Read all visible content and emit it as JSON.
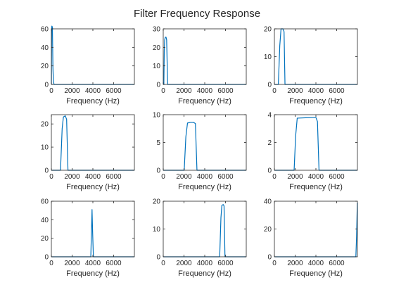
{
  "figure": {
    "title": "Filter Frequency Response",
    "line_color": "#0072BD"
  },
  "chart_data": [
    {
      "type": "line",
      "title": "",
      "xlabel": "Frequency (Hz)",
      "ylabel": "",
      "xlim": [
        0,
        8000
      ],
      "ylim": [
        0,
        60
      ],
      "xticks": [
        0,
        2000,
        4000,
        6000
      ],
      "yticks": [
        0,
        20,
        40,
        60
      ],
      "grid": false,
      "series": [
        {
          "x": [
            0,
            25,
            50,
            100,
            150,
            200,
            250,
            300,
            8000
          ],
          "y": [
            0,
            61,
            63,
            62,
            18,
            3,
            0.5,
            0,
            0
          ]
        }
      ]
    },
    {
      "type": "line",
      "title": "",
      "xlabel": "Frequency (Hz)",
      "ylabel": "",
      "xlim": [
        0,
        8000
      ],
      "ylim": [
        0,
        30
      ],
      "xticks": [
        0,
        2000,
        4000,
        6000
      ],
      "yticks": [
        0,
        10,
        20,
        30
      ],
      "grid": false,
      "series": [
        {
          "x": [
            0,
            60,
            100,
            140,
            200,
            270,
            330,
            400,
            430,
            8000
          ],
          "y": [
            0,
            0,
            18,
            24,
            25.5,
            25.5,
            24,
            6,
            0,
            0
          ]
        }
      ]
    },
    {
      "type": "line",
      "title": "",
      "xlabel": "Frequency (Hz)",
      "ylabel": "",
      "xlim": [
        0,
        8000
      ],
      "ylim": [
        0,
        20
      ],
      "xticks": [
        0,
        2000,
        4000,
        6000
      ],
      "yticks": [
        0,
        10,
        20
      ],
      "grid": false,
      "series": [
        {
          "x": [
            0,
            380,
            520,
            640,
            820,
            930,
            1020,
            8000
          ],
          "y": [
            0,
            0,
            14,
            20,
            20,
            19,
            0,
            0
          ]
        }
      ]
    },
    {
      "type": "line",
      "title": "",
      "xlabel": "Frequency (Hz)",
      "ylabel": "",
      "xlim": [
        0,
        8000
      ],
      "ylim": [
        0,
        24
      ],
      "xticks": [
        0,
        2000,
        4000,
        6000
      ],
      "yticks": [
        0,
        10,
        20
      ],
      "grid": false,
      "series": [
        {
          "x": [
            0,
            880,
            1040,
            1160,
            1340,
            1470,
            1600,
            8000
          ],
          "y": [
            0,
            0,
            18,
            23,
            23.5,
            22,
            0,
            0
          ]
        }
      ]
    },
    {
      "type": "line",
      "title": "",
      "xlabel": "Frequency (Hz)",
      "ylabel": "",
      "xlim": [
        0,
        8000
      ],
      "ylim": [
        0,
        10
      ],
      "xticks": [
        0,
        2000,
        4000,
        6000
      ],
      "yticks": [
        0,
        5,
        10
      ],
      "grid": false,
      "series": [
        {
          "x": [
            0,
            2020,
            2180,
            2340,
            2600,
            2930,
            3100,
            3250,
            8000
          ],
          "y": [
            0,
            0,
            6,
            8.5,
            8.6,
            8.6,
            8.4,
            0,
            0
          ]
        }
      ]
    },
    {
      "type": "line",
      "title": "",
      "xlabel": "Frequency (Hz)",
      "ylabel": "",
      "xlim": [
        0,
        8000
      ],
      "ylim": [
        0,
        4
      ],
      "xticks": [
        0,
        2000,
        4000,
        6000
      ],
      "yticks": [
        0,
        2,
        4
      ],
      "grid": false,
      "series": [
        {
          "x": [
            0,
            1900,
            2050,
            2200,
            3000,
            4000,
            4150,
            4300,
            8000
          ],
          "y": [
            0,
            0,
            2.5,
            3.75,
            3.78,
            3.8,
            3.5,
            0,
            0
          ]
        }
      ]
    },
    {
      "type": "line",
      "title": "",
      "xlabel": "Frequency (Hz)",
      "ylabel": "",
      "xlim": [
        0,
        8000
      ],
      "ylim": [
        0,
        60
      ],
      "xticks": [
        0,
        2000,
        4000,
        6000
      ],
      "yticks": [
        0,
        20,
        40,
        60
      ],
      "grid": false,
      "series": [
        {
          "x": [
            0,
            3800,
            3860,
            3920,
            3980,
            4050,
            8000
          ],
          "y": [
            0,
            0,
            25,
            51,
            25,
            0,
            0
          ]
        }
      ]
    },
    {
      "type": "line",
      "title": "",
      "xlabel": "Frequency (Hz)",
      "ylabel": "",
      "xlim": [
        0,
        8000
      ],
      "ylim": [
        0,
        20
      ],
      "xticks": [
        0,
        2000,
        4000,
        6000
      ],
      "yticks": [
        0,
        10,
        20
      ],
      "grid": false,
      "series": [
        {
          "x": [
            0,
            5440,
            5560,
            5650,
            5780,
            5860,
            5950,
            8000
          ],
          "y": [
            0,
            0,
            14,
            18.5,
            18.8,
            18.3,
            0,
            0
          ]
        }
      ]
    },
    {
      "type": "line",
      "title": "",
      "xlabel": "Frequency (Hz)",
      "ylabel": "",
      "xlim": [
        0,
        8000
      ],
      "ylim": [
        0,
        40
      ],
      "xticks": [
        0,
        2000,
        4000,
        6000
      ],
      "yticks": [
        0,
        20,
        40
      ],
      "grid": false,
      "series": [
        {
          "x": [
            0,
            7850,
            7920,
            7970,
            8000
          ],
          "y": [
            0,
            0,
            15,
            32,
            39
          ]
        }
      ]
    }
  ]
}
